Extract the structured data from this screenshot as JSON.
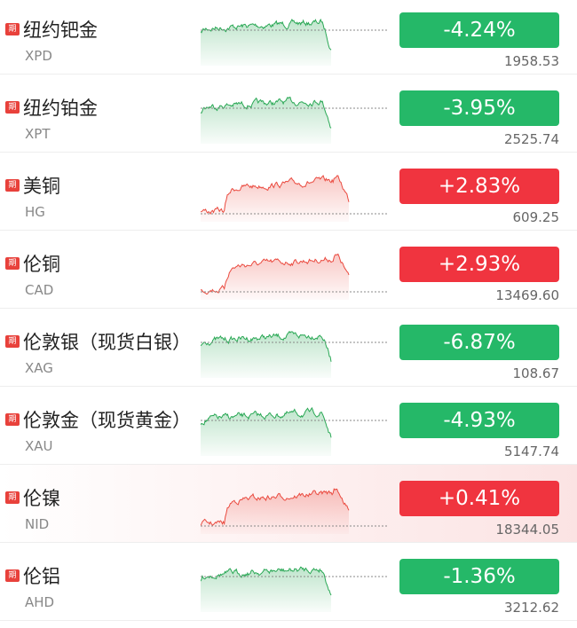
{
  "rows": [
    {
      "tag": "期",
      "name": "纽约钯金",
      "code": "XPD",
      "change": "-4.24%",
      "price": "1958.53"
    },
    {
      "tag": "期",
      "name": "纽约铂金",
      "code": "XPT",
      "change": "-3.95%",
      "price": "2525.74"
    },
    {
      "tag": "期",
      "name": "美铜",
      "code": "HG",
      "change": "+2.83%",
      "price": "609.25"
    },
    {
      "tag": "期",
      "name": "伦铜",
      "code": "CAD",
      "change": "+2.93%",
      "price": "13469.60"
    },
    {
      "tag": "期",
      "name": "伦敦银（现货白银）",
      "code": "XAG",
      "change": "-6.87%",
      "price": "108.67"
    },
    {
      "tag": "期",
      "name": "伦敦金（现货黄金）",
      "code": "XAU",
      "change": "-4.93%",
      "price": "5147.74"
    },
    {
      "tag": "期",
      "name": "伦镍",
      "code": "NID",
      "change": "+0.41%",
      "price": "18344.05"
    },
    {
      "tag": "期",
      "name": "伦铝",
      "code": "AHD",
      "change": "-1.36%",
      "price": "3212.62"
    }
  ]
}
